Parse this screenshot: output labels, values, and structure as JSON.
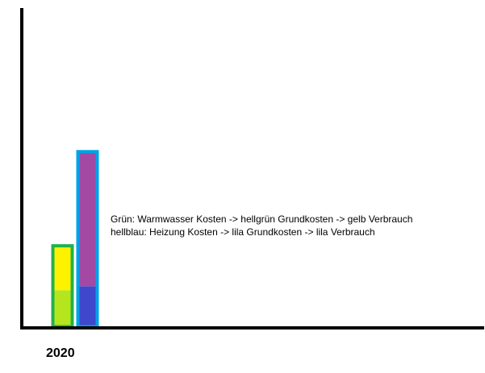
{
  "chart_data": {
    "type": "bar",
    "stacked": true,
    "categories": [
      "2020"
    ],
    "groups": [
      {
        "outline_color": "#22b14c",
        "segments": [
          {
            "fill": "#b5e61d",
            "value": 45
          },
          {
            "fill": "#fff200",
            "value": 55
          }
        ]
      },
      {
        "outline_color": "#00a2e8",
        "segments": [
          {
            "fill": "#3f48cc",
            "value": 50
          },
          {
            "fill": "#a349a4",
            "value": 170
          }
        ]
      }
    ],
    "ylim": [
      0,
      230
    ],
    "annotations": [
      "Grün: Warmwasser Kosten -> hellgrün Grundkosten -> gelb Verbrauch",
      "hellblau: Heizung Kosten -> lila Grundkosten -> lila Verbrauch"
    ],
    "axis_color": "#000000",
    "grid": false,
    "legend": "none"
  }
}
